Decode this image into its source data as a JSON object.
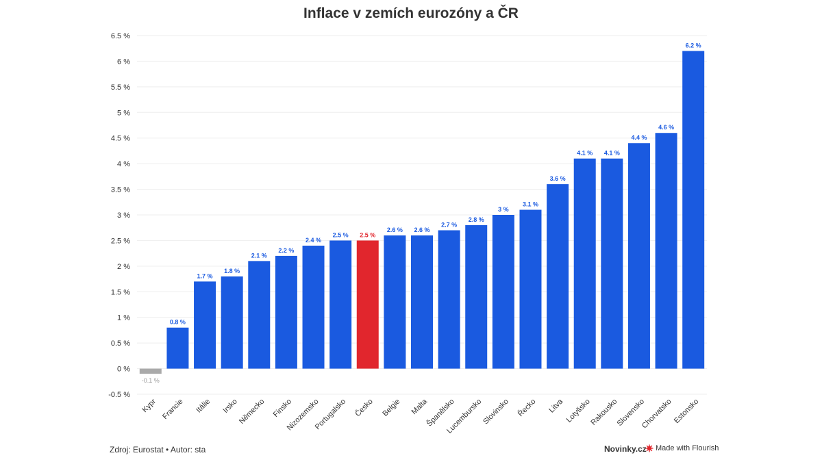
{
  "title": "Inflace v zemích eurozóny a ČR",
  "footer": {
    "source": "Zdroj: Eurostat • Autor: sta",
    "brand": "Novinky.cz",
    "made_with": "Made with Flourish"
  },
  "colors": {
    "bar_default": "#1a5ae0",
    "bar_highlight": "#e1262d",
    "bar_negative": "#aaaaaa",
    "label_default": "#1a5ae0",
    "label_highlight": "#e1262d",
    "label_negative": "#999999",
    "flourish_icon": "#e1262d"
  },
  "chart_data": {
    "type": "bar",
    "title": "Inflace v zemích eurozóny a ČR",
    "xlabel": "",
    "ylabel": "",
    "ylim": [
      -0.5,
      6.5
    ],
    "yticks": [
      -0.5,
      0,
      0.5,
      1,
      1.5,
      2,
      2.5,
      3,
      3.5,
      4,
      4.5,
      5,
      5.5,
      6,
      6.5
    ],
    "ytick_labels": [
      "-0.5 %",
      "0 %",
      "0.5 %",
      "1 %",
      "1.5 %",
      "2 %",
      "2.5 %",
      "3 %",
      "3.5 %",
      "4 %",
      "4.5 %",
      "5 %",
      "5.5 %",
      "6 %",
      "6.5 %"
    ],
    "grid": true,
    "categories": [
      "Kypr",
      "Francie",
      "Itálie",
      "Irsko",
      "Německo",
      "Finsko",
      "Nizozemsko",
      "Portugalsko",
      "Česko",
      "Belgie",
      "Malta",
      "Španělsko",
      "Lucembursko",
      "Slovinsko",
      "Řecko",
      "Litva",
      "Lotyšsko",
      "Rakousko",
      "Slovensko",
      "Chorvatsko",
      "Estonsko"
    ],
    "values": [
      -0.1,
      0.8,
      1.7,
      1.8,
      2.1,
      2.2,
      2.4,
      2.5,
      2.5,
      2.6,
      2.6,
      2.7,
      2.8,
      3,
      3.1,
      3.6,
      4.1,
      4.1,
      4.4,
      4.6,
      6.2
    ],
    "value_labels": [
      "-0.1 %",
      "0.8 %",
      "1.7 %",
      "1.8 %",
      "2.1 %",
      "2.2 %",
      "2.4 %",
      "2.5 %",
      "2.5 %",
      "2.6 %",
      "2.6 %",
      "2.7 %",
      "2.8 %",
      "3 %",
      "3.1 %",
      "3.6 %",
      "4.1 %",
      "4.1 %",
      "4.4 %",
      "4.6 %",
      "6.2 %"
    ],
    "highlight": "Česko"
  }
}
